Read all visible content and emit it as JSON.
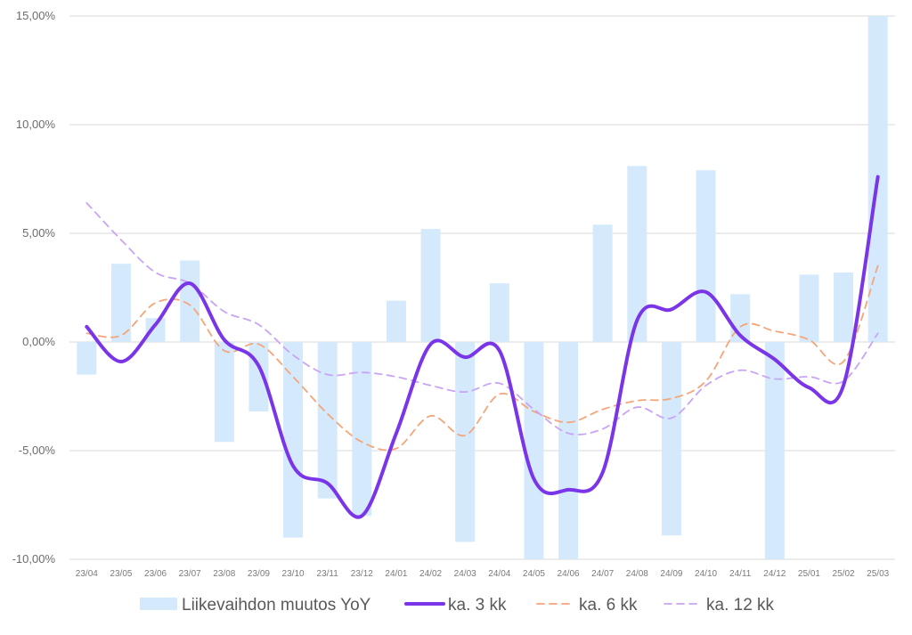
{
  "chart_data": {
    "type": "bar",
    "categories": [
      "23/04",
      "23/05",
      "23/06",
      "23/07",
      "23/08",
      "23/09",
      "23/10",
      "23/11",
      "23/12",
      "24/01",
      "24/02",
      "24/03",
      "24/04",
      "24/05",
      "24/06",
      "24/07",
      "24/08",
      "24/09",
      "24/10",
      "24/11",
      "24/12",
      "25/01",
      "25/02",
      "25/03"
    ],
    "ylim": [
      -10,
      15
    ],
    "yticks": [
      15,
      10,
      5,
      0,
      -5,
      -10
    ],
    "ytick_labels": [
      "15,00%",
      "10,00%",
      "5,00%",
      "0,00%",
      "-5,00%",
      "-10,00%"
    ],
    "grid": true,
    "legend_position": "bottom",
    "series": [
      {
        "name": "Liikevaihdon muutos YoY",
        "kind": "bar",
        "color": "#d4eafc",
        "values": [
          -1.5,
          3.6,
          1.1,
          3.75,
          -4.6,
          -3.2,
          -9.0,
          -7.2,
          -8.0,
          1.9,
          5.2,
          -9.2,
          2.7,
          -10.0,
          -10.0,
          5.4,
          8.1,
          -8.9,
          7.9,
          2.2,
          -10.0,
          3.1,
          3.2,
          15.0
        ]
      },
      {
        "name": "ka. 3 kk",
        "kind": "line",
        "style": "solid",
        "color": "#7b35e8",
        "values": [
          0.7,
          -0.9,
          0.8,
          2.7,
          0.1,
          -1.1,
          -5.7,
          -6.5,
          -8.0,
          -4.2,
          -0.1,
          -0.7,
          -0.4,
          -6.3,
          -6.8,
          -6.0,
          1.0,
          1.5,
          2.3,
          0.3,
          -0.8,
          -2.1,
          -2.0,
          7.6
        ]
      },
      {
        "name": "ka. 6 kk",
        "kind": "line",
        "style": "dashed",
        "color": "#f4a57a",
        "values": [
          0.4,
          0.3,
          1.8,
          1.7,
          -0.4,
          -0.1,
          -1.6,
          -3.3,
          -4.6,
          -4.9,
          -3.4,
          -4.3,
          -2.4,
          -3.2,
          -3.7,
          -3.1,
          -2.7,
          -2.6,
          -1.8,
          0.7,
          0.5,
          0.1,
          -0.9,
          3.5
        ]
      },
      {
        "name": "ka. 12 kk",
        "kind": "line",
        "style": "dashed",
        "color": "#c9a4f5",
        "values": [
          6.4,
          4.7,
          3.2,
          2.7,
          1.4,
          0.8,
          -0.6,
          -1.5,
          -1.4,
          -1.6,
          -2.0,
          -2.3,
          -1.9,
          -3.1,
          -4.2,
          -4.0,
          -3.0,
          -3.5,
          -2.0,
          -1.3,
          -1.7,
          -1.6,
          -1.8,
          0.4
        ]
      }
    ]
  }
}
